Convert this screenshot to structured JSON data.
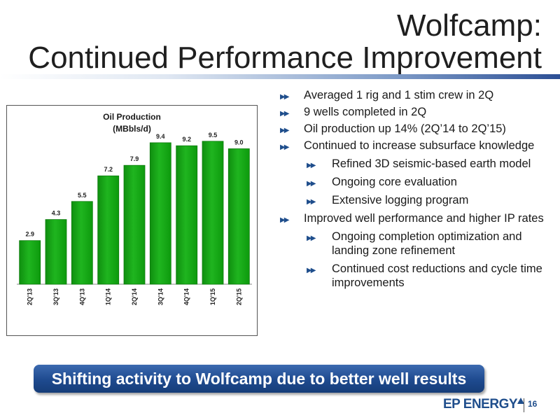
{
  "slide": {
    "title_line1": "Wolfcamp:",
    "title_line2": "Continued Performance Improvement",
    "page_number": "16",
    "logo": "EP ENERGY",
    "banner": "Shifting activity to Wolfcamp due to better well results"
  },
  "bullets": [
    {
      "level": 1,
      "text": "Averaged 1 rig and 1 stim crew in 2Q"
    },
    {
      "level": 1,
      "text": "9 wells completed in 2Q"
    },
    {
      "level": 1,
      "text": "Oil production up 14% (2Q’14 to 2Q’15)"
    },
    {
      "level": 1,
      "text": "Continued to increase subsurface knowledge"
    },
    {
      "level": 2,
      "text": "Refined 3D seismic-based earth model"
    },
    {
      "level": 2,
      "text": "Ongoing core evaluation"
    },
    {
      "level": 2,
      "text": "Extensive logging program"
    },
    {
      "level": 1,
      "text": "Improved well performance and higher IP rates"
    },
    {
      "level": 2,
      "text": "Ongoing completion optimization and landing  zone refinement"
    },
    {
      "level": 2,
      "text": "Continued cost reductions and cycle time improvements"
    }
  ],
  "colors": {
    "accent": "#1f4e8c",
    "bar_fill": "#1fb51f",
    "bar_stroke": "#0d7a0d"
  },
  "chart_data": {
    "type": "bar",
    "title": "Oil Production",
    "subtitle": "(MBbls/d)",
    "categories": [
      "2Q'13",
      "3Q'13",
      "4Q'13",
      "1Q'14",
      "2Q'14",
      "3Q'14",
      "4Q'14",
      "1Q'15",
      "2Q'15"
    ],
    "values": [
      2.9,
      4.3,
      5.5,
      7.2,
      7.9,
      9.4,
      9.2,
      9.5,
      9.0
    ],
    "labels": [
      "2.9",
      "4.3",
      "5.5",
      "7.2",
      "7.9",
      "9.4",
      "9.2",
      "9.5",
      "9.0"
    ],
    "ylim": [
      0,
      10
    ],
    "grid": false
  }
}
